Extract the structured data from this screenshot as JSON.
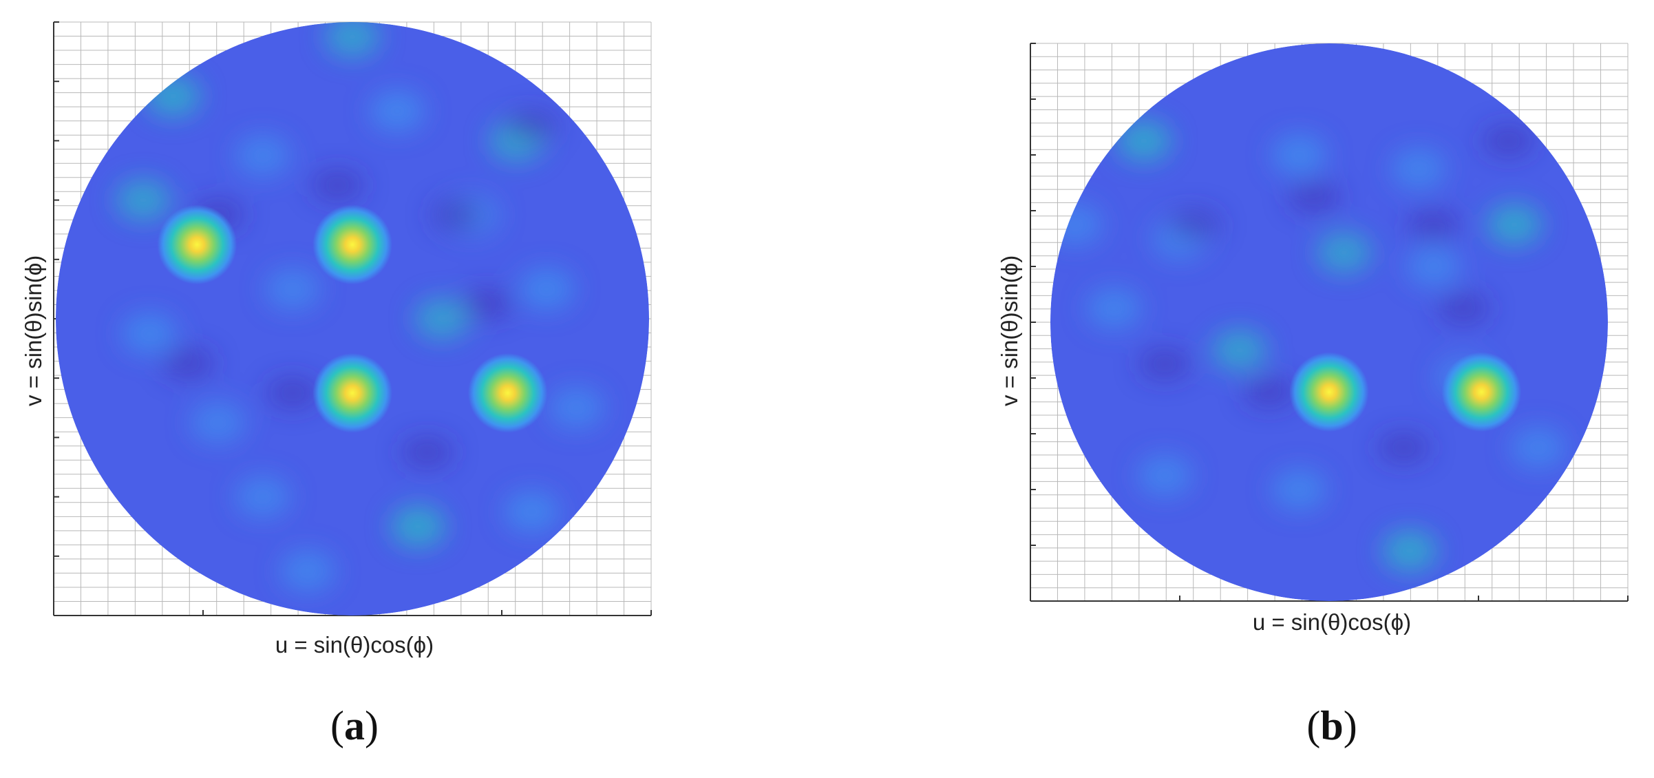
{
  "chart_data": [
    {
      "type": "heatmap",
      "panel_label": "a",
      "xlabel": "u = sin(θ)cos(ϕ)",
      "ylabel": "v = sin(θ)sin(ϕ)",
      "xlim": [
        -1,
        1
      ],
      "ylim": [
        -1,
        1
      ],
      "grid": true,
      "colormap": [
        "#3f2fb0",
        "#4a5fe8",
        "#3f95f0",
        "#2bc3c2",
        "#7fd36a",
        "#f4d43b",
        "#fbf640"
      ],
      "peaks": [
        {
          "u": -0.52,
          "v": 0.25,
          "level": 1.0
        },
        {
          "u": 0.0,
          "v": 0.25,
          "level": 1.0
        },
        {
          "u": 0.0,
          "v": -0.25,
          "level": 1.0
        },
        {
          "u": 0.52,
          "v": -0.25,
          "level": 1.0
        }
      ]
    },
    {
      "type": "heatmap",
      "panel_label": "b",
      "xlabel": "u = sin(θ)cos(ϕ)",
      "ylabel": "v = sin(θ)sin(ϕ)",
      "xlim": [
        -1,
        1
      ],
      "ylim": [
        -1,
        1
      ],
      "grid": true,
      "colormap": [
        "#3f2fb0",
        "#4a5fe8",
        "#3f95f0",
        "#2bc3c2",
        "#7fd36a",
        "#f4d43b",
        "#fbf640"
      ],
      "peaks": [
        {
          "u": 0.0,
          "v": -0.25,
          "level": 1.0
        },
        {
          "u": 0.51,
          "v": -0.25,
          "level": 1.0
        }
      ]
    }
  ],
  "captions": {
    "a": "(a)",
    "b": "(b)"
  }
}
